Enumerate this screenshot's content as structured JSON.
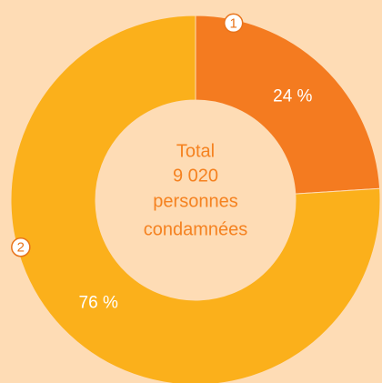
{
  "chart_data": {
    "type": "donut",
    "categories": [
      "1",
      "2"
    ],
    "values": [
      24,
      76
    ],
    "value_labels": [
      "24 %",
      "76 %"
    ],
    "colors": [
      "#f47b20",
      "#fbb01b"
    ],
    "center_text": [
      "Total",
      "9 020",
      "personnes",
      "condamnées"
    ]
  }
}
